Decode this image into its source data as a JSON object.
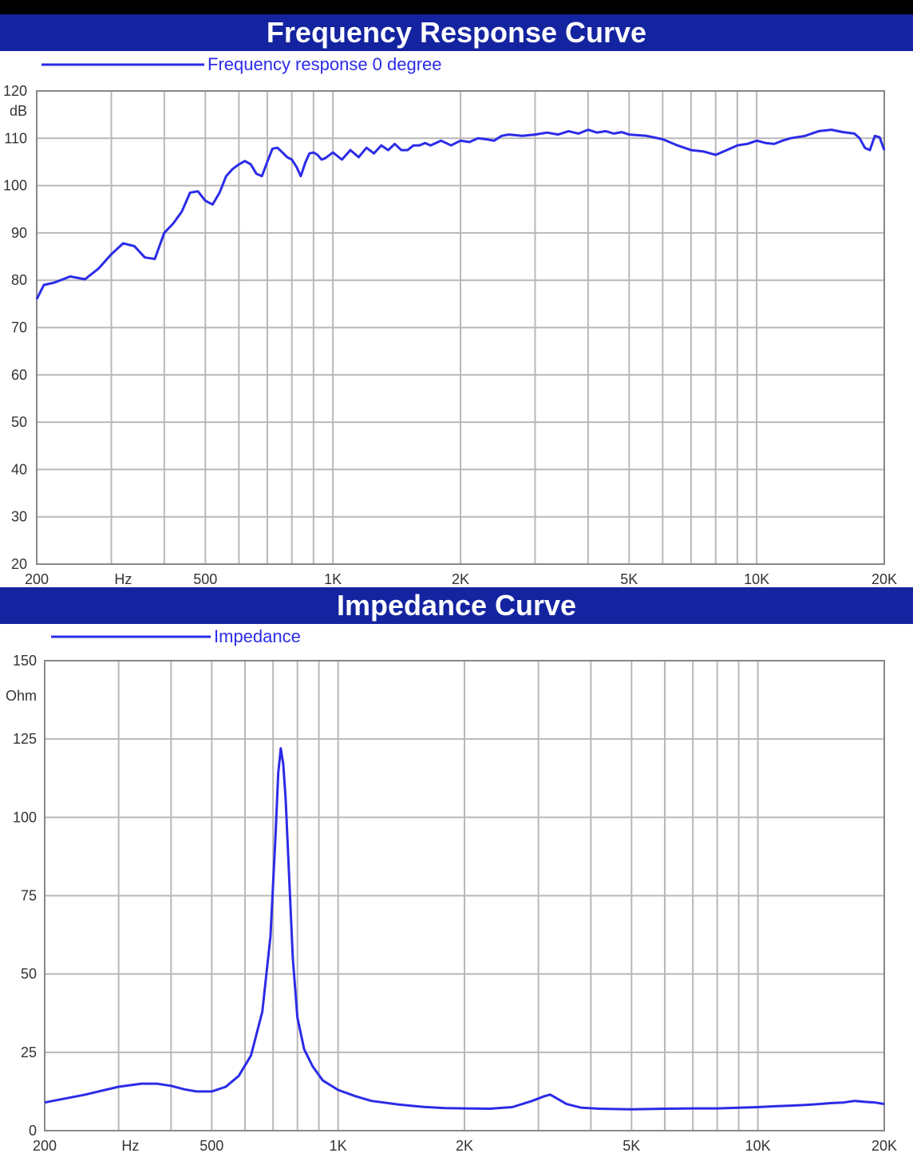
{
  "colors": {
    "banner": "#1424a0",
    "curve": "#2b2be8",
    "grid": "#b8b8b8",
    "frame": "#888888",
    "text": "#333333",
    "top_bar": "#000000"
  },
  "chart_data": [
    {
      "type": "line",
      "title": "Frequency Response Curve",
      "x_scale": "log",
      "xlim": [
        200,
        20000
      ],
      "ylim": [
        20,
        120
      ],
      "x_ticks": [
        {
          "value": 200,
          "label": "200"
        },
        {
          "value": 320,
          "label": "Hz"
        },
        {
          "value": 500,
          "label": "500"
        },
        {
          "value": 1000,
          "label": "1K"
        },
        {
          "value": 2000,
          "label": "2K"
        },
        {
          "value": 5000,
          "label": "5K"
        },
        {
          "value": 10000,
          "label": "10K"
        },
        {
          "value": 20000,
          "label": "20K"
        }
      ],
      "y_ticks": [
        120,
        110,
        100,
        90,
        80,
        70,
        60,
        50,
        40,
        30,
        20
      ],
      "y_unit": "dB",
      "grid": true,
      "legend": "top-left",
      "series": [
        {
          "name": "Frequency response 0 degree",
          "x": [
            200,
            208,
            220,
            240,
            260,
            280,
            300,
            320,
            340,
            360,
            380,
            400,
            420,
            440,
            460,
            480,
            500,
            520,
            540,
            560,
            580,
            600,
            620,
            640,
            660,
            680,
            700,
            720,
            740,
            760,
            780,
            800,
            820,
            840,
            860,
            880,
            900,
            920,
            940,
            960,
            1000,
            1050,
            1100,
            1150,
            1200,
            1250,
            1300,
            1350,
            1400,
            1450,
            1500,
            1550,
            1600,
            1650,
            1700,
            1800,
            1900,
            2000,
            2100,
            2200,
            2300,
            2400,
            2500,
            2600,
            2800,
            3000,
            3200,
            3400,
            3600,
            3800,
            4000,
            4200,
            4400,
            4600,
            4800,
            5000,
            5500,
            6000,
            6500,
            7000,
            7500,
            8000,
            8500,
            9000,
            9500,
            10000,
            10500,
            11000,
            11500,
            12000,
            13000,
            14000,
            15000,
            16000,
            17000,
            17500,
            18000,
            18500,
            19000,
            19500,
            20000
          ],
          "y": [
            76,
            79,
            79.5,
            80.8,
            80.2,
            82.5,
            85.5,
            87.8,
            87.2,
            84.8,
            84.5,
            90,
            92,
            94.5,
            98.5,
            98.8,
            96.8,
            96,
            98.5,
            102,
            103.5,
            104.5,
            105.2,
            104.5,
            102.5,
            102,
            105,
            107.8,
            108,
            107,
            106,
            105.5,
            104,
            102,
            104.8,
            106.8,
            107,
            106.5,
            105.5,
            105.8,
            107,
            105.5,
            107.5,
            106,
            108,
            106.8,
            108.5,
            107.5,
            108.8,
            107.5,
            107.5,
            108.5,
            108.5,
            109,
            108.5,
            109.5,
            108.5,
            109.5,
            109.2,
            110,
            109.8,
            109.5,
            110.5,
            110.8,
            110.5,
            110.8,
            111.2,
            110.8,
            111.5,
            111,
            111.8,
            111.2,
            111.5,
            111,
            111.3,
            110.8,
            110.5,
            109.8,
            108.5,
            107.5,
            107.2,
            106.5,
            107.5,
            108.5,
            108.8,
            109.5,
            109,
            108.8,
            109.5,
            110,
            110.5,
            111.5,
            111.8,
            111.3,
            111,
            110,
            108,
            107.5,
            110.5,
            110.2,
            107.5
          ]
        }
      ]
    },
    {
      "type": "line",
      "title": "Impedance Curve",
      "x_scale": "log",
      "xlim": [
        200,
        20000
      ],
      "ylim": [
        0,
        150
      ],
      "x_ticks": [
        {
          "value": 200,
          "label": "200"
        },
        {
          "value": 320,
          "label": "Hz"
        },
        {
          "value": 500,
          "label": "500"
        },
        {
          "value": 1000,
          "label": "1K"
        },
        {
          "value": 2000,
          "label": "2K"
        },
        {
          "value": 5000,
          "label": "5K"
        },
        {
          "value": 10000,
          "label": "10K"
        },
        {
          "value": 20000,
          "label": "20K"
        }
      ],
      "y_ticks": [
        150,
        125,
        100,
        75,
        50,
        25,
        0
      ],
      "y_unit": "Ohm",
      "grid": true,
      "legend": "top-left",
      "series": [
        {
          "name": "Impedance",
          "x": [
            200,
            250,
            300,
            340,
            370,
            400,
            430,
            460,
            500,
            540,
            580,
            620,
            660,
            690,
            710,
            720,
            730,
            740,
            750,
            765,
            780,
            800,
            830,
            870,
            920,
            1000,
            1100,
            1200,
            1400,
            1600,
            1800,
            2000,
            2300,
            2600,
            2900,
            3100,
            3200,
            3300,
            3500,
            3800,
            4200,
            5000,
            6000,
            7000,
            8000,
            9000,
            10000,
            11000,
            12000,
            13000,
            14000,
            15000,
            16000,
            17000,
            18000,
            19000,
            20000
          ],
          "y": [
            9,
            11.5,
            14,
            15,
            15,
            14.3,
            13.2,
            12.5,
            12.5,
            14,
            17.5,
            24,
            38,
            62,
            95,
            114,
            122,
            117,
            106,
            80,
            55,
            36,
            26,
            20.5,
            16,
            13,
            11,
            9.5,
            8.3,
            7.6,
            7.2,
            7.1,
            7.0,
            7.5,
            9.5,
            11,
            11.5,
            10.5,
            8.5,
            7.3,
            7.0,
            6.8,
            7.0,
            7.1,
            7.1,
            7.3,
            7.5,
            7.8,
            8.0,
            8.2,
            8.5,
            8.8,
            9.0,
            9.5,
            9.2,
            9.0,
            8.5
          ]
        }
      ]
    }
  ]
}
